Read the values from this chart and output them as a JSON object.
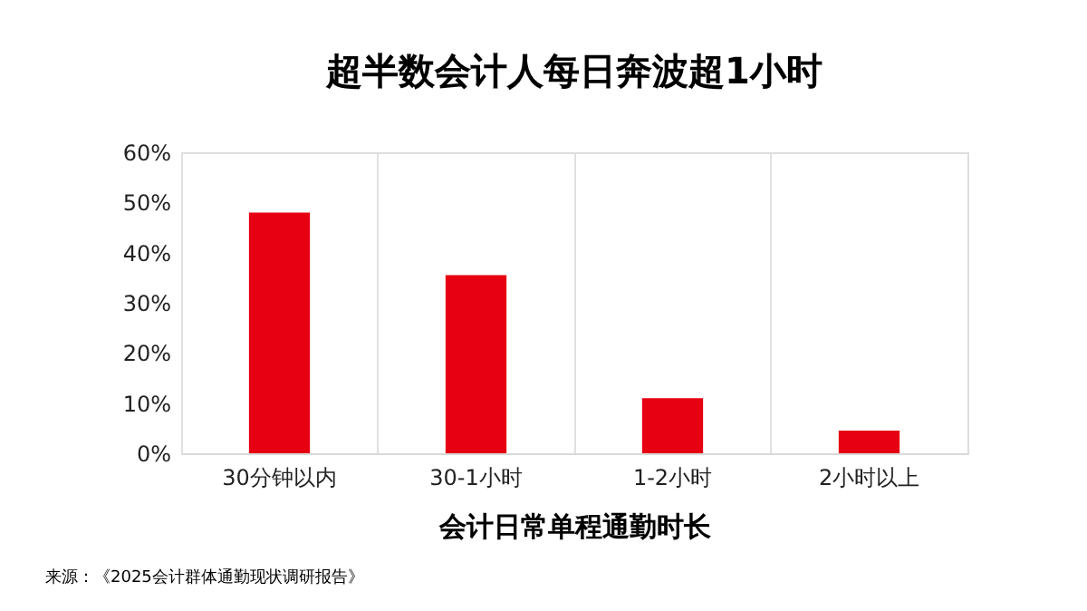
{
  "chart_data": {
    "type": "bar",
    "title": "超半数会计人每日奔波超1小时",
    "xlabel": "会计日常单程通勤时长",
    "categories": [
      "30分钟以内",
      "30-1小时",
      "1-2小时",
      "2小时以上"
    ],
    "values": [
      48,
      35.5,
      11,
      4.5
    ],
    "color": "#e60012",
    "ylim": [
      0,
      60
    ],
    "yticks": [
      {
        "value": 0,
        "label": "0%"
      },
      {
        "value": 10,
        "label": "10%"
      },
      {
        "value": 20,
        "label": "20%"
      },
      {
        "value": 30,
        "label": "30%"
      },
      {
        "value": 40,
        "label": "40%"
      },
      {
        "value": 50,
        "label": "50%"
      },
      {
        "value": 60,
        "label": "60%"
      }
    ],
    "grid": "x",
    "annotations": [
      "来源：《2025会计群体通勤现状调研报告》"
    ]
  }
}
